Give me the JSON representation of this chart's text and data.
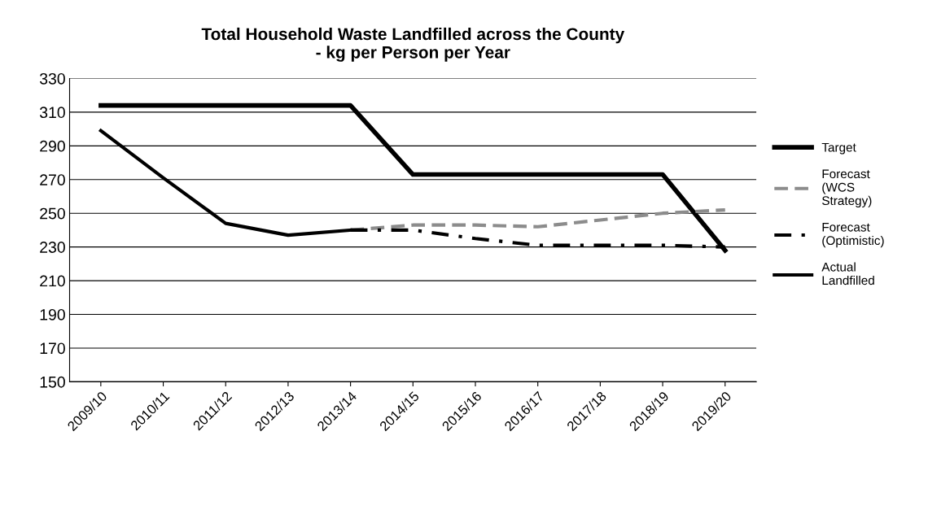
{
  "chart_data": {
    "type": "line",
    "title": "Total Household Waste Landfilled across the County\n- kg per Person per Year",
    "categories": [
      "2009/10",
      "2010/11",
      "2011/12",
      "2012/13",
      "2013/14",
      "2014/15",
      "2015/16",
      "2016/17",
      "2017/18",
      "2018/19",
      "2019/20"
    ],
    "series": [
      {
        "name": "Target",
        "color": "#000000",
        "line_style": "solid",
        "values": [
          314,
          314,
          314,
          314,
          314,
          273,
          273,
          273,
          273,
          273,
          228
        ]
      },
      {
        "name": "Forecast (WCS Strategy)",
        "color": "#8c8c8c",
        "line_style": "dashed",
        "values": [
          null,
          null,
          null,
          null,
          240,
          243,
          243,
          242,
          246,
          250,
          252
        ]
      },
      {
        "name": "Forecast (Optimistic)",
        "color": "#000000",
        "line_style": "dashdot",
        "values": [
          null,
          null,
          null,
          null,
          240,
          240,
          235,
          231,
          231,
          231,
          230
        ]
      },
      {
        "name": "Actual Landfilled",
        "color": "#000000",
        "line_style": "solid",
        "values": [
          299,
          271,
          244,
          237,
          240,
          null,
          null,
          null,
          null,
          null,
          null
        ]
      }
    ],
    "ylim": [
      150,
      330
    ],
    "yticks": [
      150,
      170,
      190,
      210,
      230,
      250,
      270,
      290,
      310,
      330
    ],
    "grid": "y",
    "legend": "right",
    "marker": "none"
  }
}
